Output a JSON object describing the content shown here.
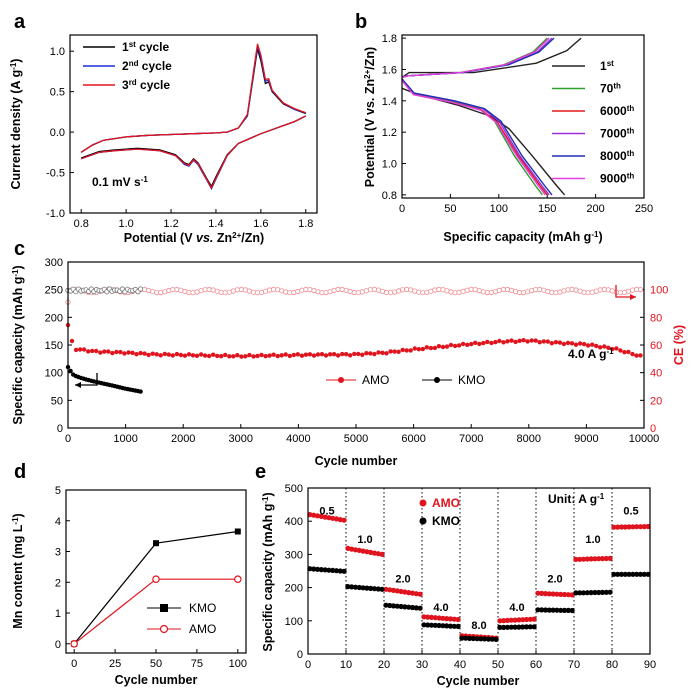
{
  "chart_data": [
    {
      "panel": "a",
      "type": "line",
      "xlabel": "Potential (V vs. Zn2+/Zn)",
      "ylabel": "Current density (A g-1)",
      "xlim": [
        0.75,
        1.85
      ],
      "ylim": [
        -1.0,
        1.2
      ],
      "xticks": [
        "0.8",
        "1.0",
        "1.2",
        "1.4",
        "1.6",
        "1.8"
      ],
      "yticks": [
        "-1.0",
        "-0.5",
        "0.0",
        "0.5",
        "1.0"
      ],
      "annotation": "0.1 mV s-1",
      "series": [
        {
          "name": "1st cycle",
          "color": "#000000",
          "upper": [
            [
              0.8,
              -0.25
            ],
            [
              0.85,
              -0.16
            ],
            [
              0.9,
              -0.1
            ],
            [
              1.0,
              -0.06
            ],
            [
              1.1,
              -0.04
            ],
            [
              1.2,
              -0.03
            ],
            [
              1.3,
              -0.02
            ],
            [
              1.4,
              -0.01
            ],
            [
              1.45,
              0.0
            ],
            [
              1.5,
              0.05
            ],
            [
              1.54,
              0.2
            ],
            [
              1.57,
              0.75
            ],
            [
              1.585,
              1.03
            ],
            [
              1.6,
              0.88
            ],
            [
              1.62,
              0.6
            ],
            [
              1.635,
              0.62
            ],
            [
              1.65,
              0.5
            ],
            [
              1.7,
              0.35
            ],
            [
              1.75,
              0.28
            ],
            [
              1.8,
              0.23
            ]
          ],
          "lower": [
            [
              1.8,
              0.2
            ],
            [
              1.75,
              0.13
            ],
            [
              1.7,
              0.08
            ],
            [
              1.65,
              0.03
            ],
            [
              1.6,
              -0.02
            ],
            [
              1.55,
              -0.08
            ],
            [
              1.5,
              -0.14
            ],
            [
              1.45,
              -0.28
            ],
            [
              1.4,
              -0.55
            ],
            [
              1.38,
              -0.67
            ],
            [
              1.36,
              -0.58
            ],
            [
              1.32,
              -0.38
            ],
            [
              1.3,
              -0.33
            ],
            [
              1.28,
              -0.4
            ],
            [
              1.26,
              -0.38
            ],
            [
              1.22,
              -0.28
            ],
            [
              1.15,
              -0.22
            ],
            [
              1.05,
              -0.2
            ],
            [
              0.95,
              -0.22
            ],
            [
              0.88,
              -0.24
            ],
            [
              0.8,
              -0.32
            ]
          ]
        },
        {
          "name": "2nd cycle",
          "color": "#1f2fd6",
          "upper": [
            [
              0.8,
              -0.25
            ],
            [
              0.85,
              -0.16
            ],
            [
              0.9,
              -0.1
            ],
            [
              1.0,
              -0.06
            ],
            [
              1.1,
              -0.04
            ],
            [
              1.2,
              -0.03
            ],
            [
              1.3,
              -0.02
            ],
            [
              1.4,
              -0.01
            ],
            [
              1.45,
              0.0
            ],
            [
              1.5,
              0.05
            ],
            [
              1.54,
              0.21
            ],
            [
              1.57,
              0.78
            ],
            [
              1.585,
              1.06
            ],
            [
              1.6,
              0.92
            ],
            [
              1.62,
              0.63
            ],
            [
              1.635,
              0.64
            ],
            [
              1.65,
              0.51
            ],
            [
              1.7,
              0.36
            ],
            [
              1.75,
              0.28
            ],
            [
              1.8,
              0.24
            ]
          ],
          "lower": [
            [
              1.8,
              0.2
            ],
            [
              1.75,
              0.13
            ],
            [
              1.7,
              0.08
            ],
            [
              1.65,
              0.03
            ],
            [
              1.6,
              -0.02
            ],
            [
              1.55,
              -0.08
            ],
            [
              1.5,
              -0.14
            ],
            [
              1.45,
              -0.29
            ],
            [
              1.4,
              -0.58
            ],
            [
              1.38,
              -0.7
            ],
            [
              1.36,
              -0.6
            ],
            [
              1.32,
              -0.4
            ],
            [
              1.3,
              -0.35
            ],
            [
              1.28,
              -0.42
            ],
            [
              1.26,
              -0.4
            ],
            [
              1.22,
              -0.29
            ],
            [
              1.15,
              -0.23
            ],
            [
              1.05,
              -0.21
            ],
            [
              0.95,
              -0.23
            ],
            [
              0.88,
              -0.25
            ],
            [
              0.8,
              -0.33
            ]
          ]
        },
        {
          "name": "3rd cycle",
          "color": "#e0141e",
          "upper": [
            [
              0.8,
              -0.25
            ],
            [
              0.85,
              -0.16
            ],
            [
              0.9,
              -0.1
            ],
            [
              1.0,
              -0.06
            ],
            [
              1.1,
              -0.04
            ],
            [
              1.2,
              -0.03
            ],
            [
              1.3,
              -0.02
            ],
            [
              1.4,
              -0.01
            ],
            [
              1.45,
              0.0
            ],
            [
              1.5,
              0.05
            ],
            [
              1.54,
              0.22
            ],
            [
              1.57,
              0.8
            ],
            [
              1.585,
              1.09
            ],
            [
              1.6,
              0.95
            ],
            [
              1.62,
              0.65
            ],
            [
              1.635,
              0.66
            ],
            [
              1.65,
              0.52
            ],
            [
              1.7,
              0.36
            ],
            [
              1.75,
              0.29
            ],
            [
              1.8,
              0.24
            ]
          ],
          "lower": [
            [
              1.8,
              0.2
            ],
            [
              1.75,
              0.13
            ],
            [
              1.7,
              0.08
            ],
            [
              1.65,
              0.03
            ],
            [
              1.6,
              -0.02
            ],
            [
              1.55,
              -0.08
            ],
            [
              1.5,
              -0.14
            ],
            [
              1.45,
              -0.29
            ],
            [
              1.4,
              -0.57
            ],
            [
              1.38,
              -0.69
            ],
            [
              1.36,
              -0.59
            ],
            [
              1.32,
              -0.39
            ],
            [
              1.3,
              -0.34
            ],
            [
              1.28,
              -0.41
            ],
            [
              1.26,
              -0.39
            ],
            [
              1.22,
              -0.29
            ],
            [
              1.15,
              -0.23
            ],
            [
              1.05,
              -0.21
            ],
            [
              0.95,
              -0.23
            ],
            [
              0.88,
              -0.25
            ],
            [
              0.8,
              -0.33
            ]
          ]
        }
      ]
    },
    {
      "panel": "b",
      "type": "line",
      "xlabel": "Specific capacity (mAh g-1)",
      "ylabel": "Potential (V vs. Zn2+/Zn)",
      "xlim": [
        0,
        250
      ],
      "ylim": [
        0.78,
        1.82
      ],
      "xticks": [
        "0",
        "50",
        "100",
        "150",
        "200",
        "250"
      ],
      "yticks": [
        "0.8",
        "1.0",
        "1.2",
        "1.4",
        "1.6",
        "1.8"
      ],
      "series": [
        {
          "name": "1st",
          "color": "#222222",
          "charge_end": 185,
          "discharge_end": 168,
          "plateau": 1.47
        },
        {
          "name": "70th",
          "color": "#2ca02c",
          "charge_end": 150,
          "discharge_end": 145,
          "plateau": 1.4
        },
        {
          "name": "6000th",
          "color": "#e31a1c",
          "charge_end": 152,
          "discharge_end": 150,
          "plateau": 1.39
        },
        {
          "name": "7000th",
          "color": "#9b30d9",
          "charge_end": 155,
          "discharge_end": 152,
          "plateau": 1.4
        },
        {
          "name": "8000th",
          "color": "#1f2fb4",
          "charge_end": 157,
          "discharge_end": 155,
          "plateau": 1.4
        },
        {
          "name": "9000th",
          "color": "#e040e0",
          "charge_end": 152,
          "discharge_end": 148,
          "plateau": 1.39
        }
      ]
    },
    {
      "panel": "c",
      "type": "scatter",
      "xlabel": "Cycle number",
      "ylabel": "Specific capacity (mAh g-1)",
      "ylabel_right": "CE (%)",
      "xlim": [
        0,
        10000
      ],
      "ylim": [
        0,
        300
      ],
      "ylim_right": [
        0,
        120
      ],
      "xticks": [
        "0",
        "1000",
        "2000",
        "3000",
        "4000",
        "5000",
        "6000",
        "7000",
        "8000",
        "9000",
        "10000"
      ],
      "yticks": [
        "0",
        "50",
        "100",
        "150",
        "200",
        "250",
        "300"
      ],
      "yticks_right": [
        "0",
        "20",
        "40",
        "60",
        "80",
        "100"
      ],
      "annotation": "4.0 A g-1",
      "legend": [
        "AMO",
        "KMO"
      ],
      "series": [
        {
          "name": "AMO",
          "color": "#e0141e",
          "capacity": [
            [
              0,
              186
            ],
            [
              100,
              143
            ],
            [
              500,
              138
            ],
            [
              1000,
              136
            ],
            [
              1500,
              133
            ],
            [
              2000,
              132
            ],
            [
              3000,
              130
            ],
            [
              4000,
              132
            ],
            [
              5000,
              133
            ],
            [
              5500,
              136
            ],
            [
              6000,
              142
            ],
            [
              7000,
              152
            ],
            [
              7500,
              156
            ],
            [
              8000,
              158
            ],
            [
              8500,
              154
            ],
            [
              9000,
              151
            ],
            [
              9500,
              143
            ],
            [
              10000,
              128
            ]
          ],
          "ce": 99
        },
        {
          "name": "KMO",
          "color": "#000000",
          "capacity": [
            [
              0,
              110
            ],
            [
              100,
              95
            ],
            [
              300,
              88
            ],
            [
              500,
              83
            ],
            [
              800,
              76
            ],
            [
              1000,
              71
            ],
            [
              1300,
              65
            ]
          ],
          "ce": 99.5,
          "ce_end": 1300
        }
      ]
    },
    {
      "panel": "d",
      "type": "line",
      "xlabel": "Cycle number",
      "ylabel": "Mn content (mg L-1)",
      "xlim": [
        -5,
        105
      ],
      "ylim": [
        -0.3,
        5
      ],
      "xticks": [
        "0",
        "25",
        "50",
        "75",
        "100"
      ],
      "yticks": [
        "0",
        "1",
        "2",
        "3",
        "4",
        "5"
      ],
      "x": [
        0,
        50,
        100
      ],
      "series": [
        {
          "name": "KMO",
          "color": "#000000",
          "values": [
            0,
            3.27,
            3.65
          ]
        },
        {
          "name": "AMO",
          "color": "#e0141e",
          "values": [
            0,
            2.1,
            2.1
          ]
        }
      ]
    },
    {
      "panel": "e",
      "type": "scatter",
      "xlabel": "Cycle number",
      "ylabel": "Specific capacity (mAh g-1)",
      "xlim": [
        0,
        90
      ],
      "ylim": [
        0,
        500
      ],
      "xticks": [
        "0",
        "10",
        "20",
        "30",
        "40",
        "50",
        "60",
        "70",
        "80",
        "90"
      ],
      "yticks": [
        "0",
        "100",
        "200",
        "300",
        "400",
        "500"
      ],
      "unit_label": "Unit: A g-1",
      "rates": [
        "0.5",
        "1.0",
        "2.0",
        "4.0",
        "8.0",
        "4.0",
        "2.0",
        "1.0",
        "0.5"
      ],
      "series": [
        {
          "name": "AMO",
          "color": "#e0141e",
          "segments": [
            [
              420,
              403
            ],
            [
              318,
              300
            ],
            [
              195,
              180
            ],
            [
              112,
              104
            ],
            [
              55,
              48
            ],
            [
              100,
              105
            ],
            [
              183,
              178
            ],
            [
              285,
              288
            ],
            [
              382,
              384
            ]
          ]
        },
        {
          "name": "KMO",
          "color": "#000000",
          "segments": [
            [
              257,
              249
            ],
            [
              203,
              195
            ],
            [
              147,
              138
            ],
            [
              88,
              83
            ],
            [
              48,
              44
            ],
            [
              80,
              82
            ],
            [
              133,
              131
            ],
            [
              184,
              186
            ],
            [
              240,
              240
            ]
          ]
        }
      ]
    }
  ],
  "labels": {
    "panel_a": "a",
    "panel_b": "b",
    "panel_c": "c",
    "panel_d": "d",
    "panel_e": "e",
    "a_xlabel_1": "Potential (V ",
    "a_xlabel_vs": "vs.",
    "a_xlabel_2": " Zn",
    "a_xlabel_sup": "2+",
    "a_xlabel_3": "/Zn)",
    "a_ylabel_1": "Current density (A g",
    "a_ylabel_sup": "-1",
    "a_ylabel_2": ")",
    "a_leg_1": "1",
    "a_leg_1_sup": "st",
    "a_leg_2": "2",
    "a_leg_2_sup": "nd",
    "a_leg_3": "3",
    "a_leg_3_sup": "rd",
    "a_leg_cycle": " cycle",
    "a_note_1": "0.1 mV s",
    "a_note_sup": "-1",
    "b_xlabel_1": "Specific capacity (mAh g",
    "b_xlabel_sup": "-1",
    "b_xlabel_2": ")",
    "b_ylabel_1": "Potential (V vs. Zn",
    "b_ylabel_sup": "2+",
    "b_ylabel_2": "/Zn)",
    "b_leg": [
      "1",
      "70",
      "6000",
      "7000",
      "8000",
      "9000"
    ],
    "b_leg_sup": [
      "st",
      "th",
      "th",
      "th",
      "th",
      "th"
    ],
    "c_xlabel": "Cycle number",
    "c_ylabel_1": "Specific capacity (mAh g",
    "c_ylabel_sup": "-1",
    "c_ylabel_2": ")",
    "c_ylabel_right": "CE (%)",
    "c_note_1": "4.0 A g",
    "c_note_sup": "-1",
    "c_leg_amo": "AMO",
    "c_leg_kmo": "KMO",
    "d_xlabel": "Cycle number",
    "d_ylabel_1": "Mn content (mg L",
    "d_ylabel_sup": "-1",
    "d_ylabel_2": ")",
    "d_leg_kmo": "KMO",
    "d_leg_amo": "AMO",
    "e_xlabel": "Cycle number",
    "e_ylabel_1": "Specific capacity (mAh g",
    "e_ylabel_sup": "-1",
    "e_ylabel_2": ")",
    "e_leg_amo": "AMO",
    "e_leg_kmo": "KMO",
    "e_unit_1": "Unit: A g",
    "e_unit_sup": "-1"
  }
}
